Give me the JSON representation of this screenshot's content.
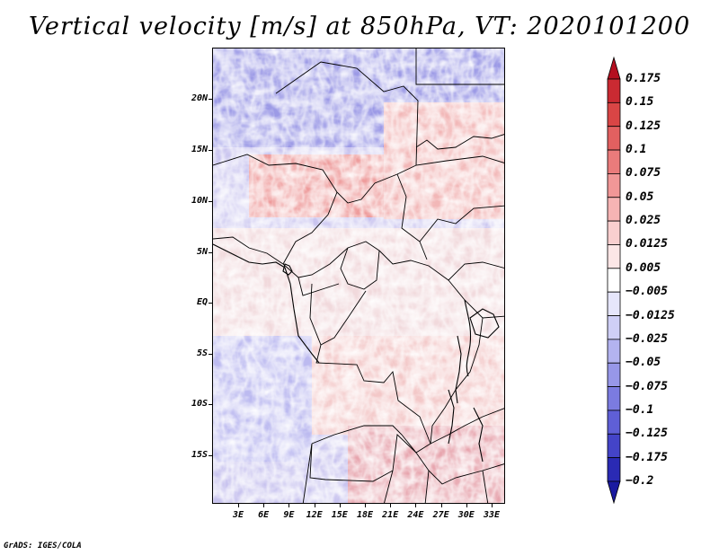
{
  "title": "Vertical velocity [m/s] at 850hPa, VT: 2020101200",
  "credit": "GrADS: IGES/COLA",
  "latitude_labels": [
    "20N",
    "15N",
    "10N",
    "5N",
    "EQ",
    "5S",
    "10S",
    "15S"
  ],
  "longitude_labels": [
    "3E",
    "6E",
    "9E",
    "12E",
    "15E",
    "18E",
    "21E",
    "24E",
    "27E",
    "30E",
    "33E"
  ],
  "colorbar": {
    "labels": [
      "0.175",
      "0.15",
      "0.125",
      "0.1",
      "0.075",
      "0.05",
      "0.025",
      "0.0125",
      "0.005",
      "−0.005",
      "−0.0125",
      "−0.025",
      "−0.05",
      "−0.075",
      "−0.1",
      "−0.125",
      "−0.175",
      "−0.2"
    ],
    "colors": [
      "#b40f20",
      "#ca2a32",
      "#d94545",
      "#e26060",
      "#ea7b7b",
      "#f19797",
      "#f6b4b4",
      "#f9cfcf",
      "#fce6e6",
      "#ffffff",
      "#e6e6fb",
      "#cfcff6",
      "#b3b3f0",
      "#9797e8",
      "#7b7be0",
      "#5f5fd6",
      "#4444c8",
      "#2a2ab4",
      "#1a1aa0"
    ]
  }
}
